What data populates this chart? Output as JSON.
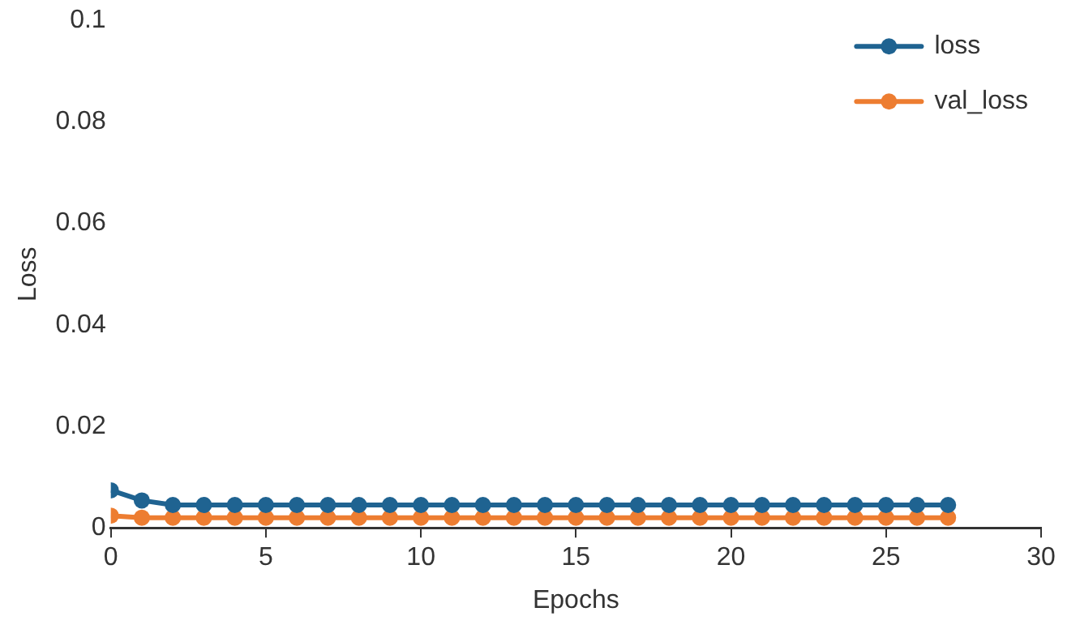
{
  "chart_data": {
    "type": "line",
    "xlabel": "Epochs",
    "ylabel": "Loss",
    "x": [
      0,
      1,
      2,
      3,
      4,
      5,
      6,
      7,
      8,
      9,
      10,
      11,
      12,
      13,
      14,
      15,
      16,
      17,
      18,
      19,
      20,
      21,
      22,
      23,
      24,
      25,
      26,
      27
    ],
    "series": [
      {
        "name": "loss",
        "color": "#1f6391",
        "values": [
          0.0074,
          0.0054,
          0.0045,
          0.0045,
          0.0045,
          0.0045,
          0.0045,
          0.0045,
          0.0045,
          0.0045,
          0.0045,
          0.0045,
          0.0045,
          0.0045,
          0.0045,
          0.0045,
          0.0045,
          0.0045,
          0.0045,
          0.0045,
          0.0045,
          0.0045,
          0.0045,
          0.0045,
          0.0045,
          0.0045,
          0.0045,
          0.0045
        ]
      },
      {
        "name": "val_loss",
        "color": "#ed7d31",
        "values": [
          0.0024,
          0.002,
          0.002,
          0.002,
          0.002,
          0.002,
          0.002,
          0.002,
          0.002,
          0.002,
          0.002,
          0.002,
          0.002,
          0.002,
          0.002,
          0.002,
          0.002,
          0.002,
          0.002,
          0.002,
          0.002,
          0.002,
          0.002,
          0.002,
          0.002,
          0.002,
          0.002,
          0.002
        ]
      }
    ],
    "xlim": [
      0,
      30
    ],
    "xticks": [
      0,
      5,
      10,
      15,
      20,
      25,
      30
    ],
    "ylim": [
      0,
      0.1
    ],
    "yticks": [
      0,
      0.02,
      0.04,
      0.06,
      0.08,
      0.1
    ],
    "grid": false,
    "legend": "top right",
    "marker": "circle",
    "line_style": "solid"
  }
}
